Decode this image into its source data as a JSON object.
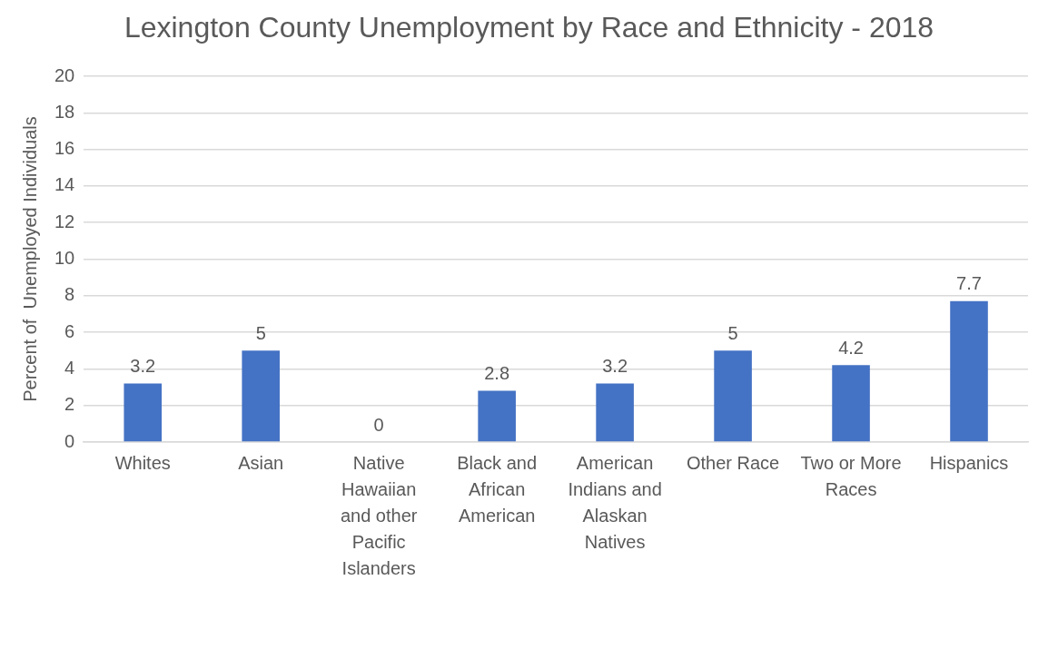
{
  "chart_data": {
    "type": "bar",
    "title": "Lexington County Unemployment by Race and Ethnicity - 2018",
    "ylabel": "Percent of  Unemployed Individuals",
    "categories": [
      "Whites",
      "Asian",
      "Native Hawaiian and other Pacific Islanders",
      "Black and African American",
      "American Indians and Alaskan Natives",
      "Other Race",
      "Two or More Races",
      "Hispanics"
    ],
    "values": [
      3.2,
      5,
      0,
      2.8,
      3.2,
      5,
      4.2,
      7.7
    ],
    "color": "#4472c4",
    "ylim": [
      0,
      20
    ],
    "yticks": [
      0,
      2,
      4,
      6,
      8,
      10,
      12,
      14,
      16,
      18,
      20
    ],
    "grid": "y",
    "legend": false,
    "data_labels": true
  }
}
